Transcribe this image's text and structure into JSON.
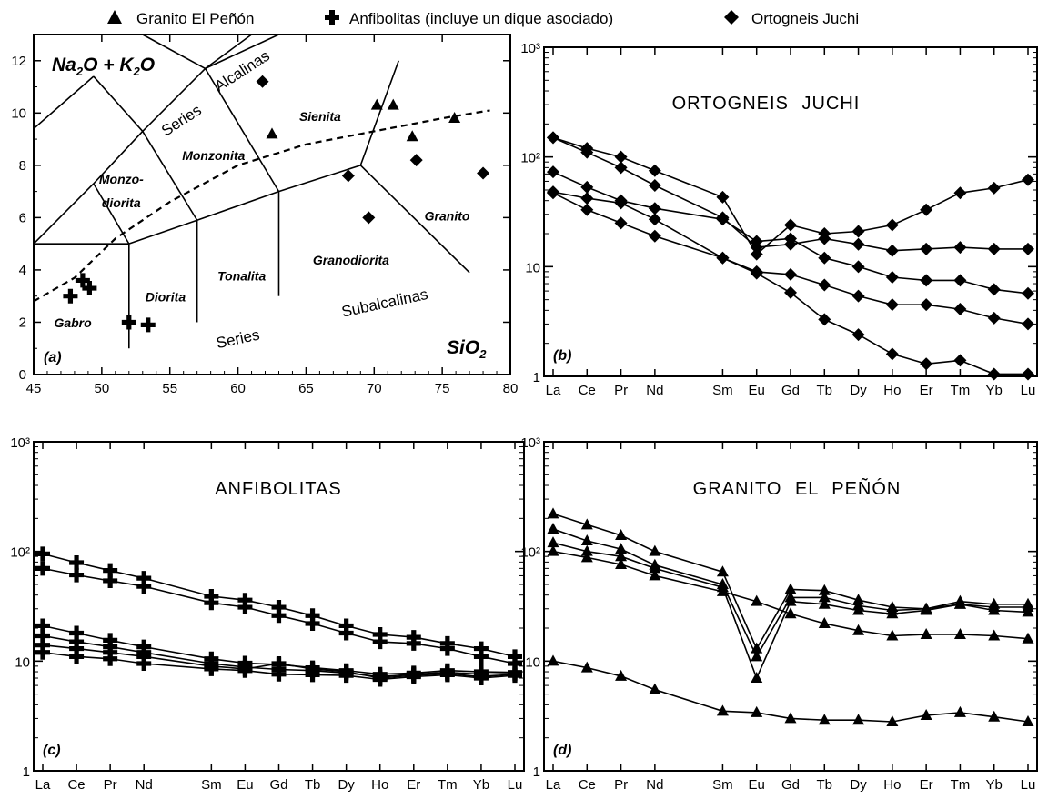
{
  "legend": [
    {
      "label": "Granito El Peñón",
      "symbol": "triangle"
    },
    {
      "label": "Anfibolitas (incluye un dique asociado)",
      "symbol": "cross"
    },
    {
      "label": "Ortogneis Juchi",
      "symbol": "diamond"
    }
  ],
  "chart_data": [
    {
      "panel": "(a)",
      "type": "scatter",
      "title": "",
      "xlabel": "SiO2",
      "ylabel": "Na2O + K2O",
      "xlim": [
        45,
        80
      ],
      "ylim": [
        0,
        13
      ],
      "xticks": [
        45,
        50,
        55,
        60,
        65,
        70,
        75,
        80
      ],
      "yticks": [
        0,
        2,
        4,
        6,
        8,
        10,
        12
      ],
      "field_labels": [
        "Gabro",
        "Diorita",
        "Tonalita",
        "Granodiorita",
        "Granito",
        "Monzo-",
        "diorita",
        "Monzonita",
        "Sienita",
        "Alcalinas",
        "Series",
        "Series",
        "Subalcalinas"
      ],
      "series": [
        {
          "name": "Granito El Peñón",
          "symbol": "triangle",
          "points": [
            [
              62.5,
              9.2
            ],
            [
              70.2,
              10.3
            ],
            [
              71.4,
              10.3
            ],
            [
              72.8,
              9.1
            ],
            [
              75.9,
              9.8
            ]
          ]
        },
        {
          "name": "Anfibolitas (incluye un dique asociado)",
          "symbol": "cross",
          "points": [
            [
              47.7,
              3.0
            ],
            [
              48.6,
              3.6
            ],
            [
              49.1,
              3.3
            ],
            [
              52.0,
              2.0
            ],
            [
              53.4,
              1.9
            ]
          ]
        },
        {
          "name": "Ortogneis Juchi",
          "symbol": "diamond",
          "points": [
            [
              61.8,
              11.2
            ],
            [
              68.1,
              7.6
            ],
            [
              69.6,
              6.0
            ],
            [
              73.1,
              8.2
            ],
            [
              78.0,
              7.7
            ]
          ]
        }
      ]
    },
    {
      "panel": "(b)",
      "type": "line",
      "title": "ORTOGNEIS JUCHI",
      "scale": "log",
      "ylim": [
        1,
        1000
      ],
      "yticks": [
        "1",
        "10",
        "10²",
        "10³"
      ],
      "symbol": "diamond",
      "categories": [
        "La",
        "Ce",
        "Pr",
        "Nd",
        "Sm",
        "Eu",
        "Gd",
        "Tb",
        "Dy",
        "Ho",
        "Er",
        "Tm",
        "Yb",
        "Lu"
      ],
      "series": [
        {
          "values": [
            150,
            120,
            100,
            75,
            43,
            13,
            24,
            20,
            21,
            24,
            33,
            47,
            52,
            62
          ]
        },
        {
          "values": [
            150,
            110,
            80,
            55,
            28,
            15,
            16,
            18,
            16,
            14,
            14.5,
            15,
            14.5,
            14.5
          ]
        },
        {
          "values": [
            73,
            53,
            40,
            34,
            27,
            17,
            18,
            12,
            10,
            8,
            7.5,
            7.5,
            6.2,
            5.7
          ]
        },
        {
          "values": [
            48,
            42,
            38,
            27,
            12,
            9,
            8.5,
            6.8,
            5.4,
            4.5,
            4.5,
            4.1,
            3.4,
            3.0
          ]
        },
        {
          "values": [
            47,
            33,
            25,
            19,
            12,
            8.7,
            5.8,
            3.3,
            2.4,
            1.6,
            1.3,
            1.4,
            1.05,
            1.05
          ]
        }
      ]
    },
    {
      "panel": "(c)",
      "type": "line",
      "title": "ANFIBOLITAS",
      "scale": "log",
      "ylim": [
        1,
        1000
      ],
      "yticks": [
        "1",
        "10",
        "10²",
        "10³"
      ],
      "symbol": "cross",
      "categories": [
        "La",
        "Ce",
        "Pr",
        "Nd",
        "Sm",
        "Eu",
        "Gd",
        "Tb",
        "Dy",
        "Ho",
        "Er",
        "Tm",
        "Yb",
        "Lu"
      ],
      "series": [
        {
          "values": [
            95,
            79,
            67,
            57,
            39,
            36,
            31,
            26,
            21,
            17.5,
            16.5,
            14.5,
            13,
            11
          ]
        },
        {
          "values": [
            70,
            61,
            54,
            48,
            34,
            31,
            26,
            22,
            18,
            15,
            14.5,
            13,
            11,
            9.5
          ]
        },
        {
          "values": [
            21,
            18,
            15.5,
            13.5,
            10.5,
            9.6,
            9.3,
            8.7,
            8.2,
            7.6,
            7.8,
            8.2,
            8.0,
            7.9
          ]
        },
        {
          "values": [
            17,
            15,
            13.5,
            12,
            9.5,
            8.8,
            8.4,
            8.2,
            7.8,
            7.2,
            7.6,
            7.9,
            7.6,
            7.7
          ]
        },
        {
          "values": [
            14,
            13,
            12,
            11,
            9.0,
            8.5,
            9.5,
            8.5,
            8.0,
            7.0,
            7.4,
            7.7,
            7.2,
            7.6
          ]
        },
        {
          "values": [
            12,
            11,
            10.5,
            9.5,
            8.5,
            8.2,
            7.6,
            7.5,
            7.4,
            6.8,
            7.2,
            7.5,
            7.0,
            7.4
          ]
        }
      ]
    },
    {
      "panel": "(d)",
      "type": "line",
      "title": "GRANITO EL PEÑÓN",
      "scale": "log",
      "ylim": [
        1,
        1000
      ],
      "yticks": [
        "1",
        "10",
        "10²",
        "10³"
      ],
      "symbol": "triangle",
      "categories": [
        "La",
        "Ce",
        "Pr",
        "Nd",
        "Sm",
        "Eu",
        "Gd",
        "Tb",
        "Dy",
        "Ho",
        "Er",
        "Tm",
        "Yb",
        "Lu"
      ],
      "series": [
        {
          "values": [
            220,
            175,
            140,
            100,
            65,
            13,
            45,
            44,
            36,
            31,
            30,
            35,
            33,
            33
          ]
        },
        {
          "values": [
            160,
            125,
            105,
            75,
            50,
            11,
            38,
            38,
            32,
            29,
            30,
            33,
            31,
            31
          ]
        },
        {
          "values": [
            120,
            100,
            90,
            70,
            47,
            7,
            35,
            33,
            29,
            27,
            29,
            33,
            29,
            28
          ]
        },
        {
          "values": [
            100,
            88,
            76,
            60,
            43,
            35,
            27,
            22,
            19,
            17,
            17.5,
            17.5,
            17,
            16
          ]
        },
        {
          "values": [
            10,
            8.7,
            7.3,
            5.5,
            3.5,
            3.4,
            3.0,
            2.9,
            2.9,
            2.8,
            3.2,
            3.4,
            3.1,
            2.8
          ]
        }
      ]
    }
  ]
}
